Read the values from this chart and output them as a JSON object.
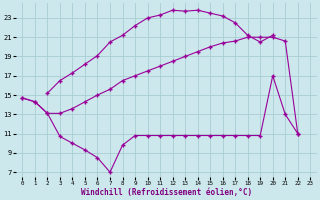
{
  "background_color": "#cce8ec",
  "grid_color": "#a8cdd2",
  "line_color": "#990099",
  "xlabel": "Windchill (Refroidissement éolien,°C)",
  "xlim": [
    -0.5,
    23.5
  ],
  "ylim": [
    6.5,
    24.5
  ],
  "xticks": [
    0,
    1,
    2,
    3,
    4,
    5,
    6,
    7,
    8,
    9,
    10,
    11,
    12,
    13,
    14,
    15,
    16,
    17,
    18,
    19,
    20,
    21,
    22,
    23
  ],
  "yticks": [
    7,
    9,
    11,
    13,
    15,
    17,
    19,
    21,
    23
  ],
  "s_upper_x": [
    2,
    3,
    4,
    5,
    6,
    7,
    8,
    9,
    10,
    11,
    12,
    13,
    14,
    15,
    16,
    17,
    18,
    19,
    20
  ],
  "s_upper_y": [
    15.2,
    16.5,
    17.3,
    18.2,
    19.1,
    20.5,
    21.2,
    22.2,
    23.0,
    23.3,
    23.8,
    23.7,
    23.8,
    23.5,
    23.2,
    22.5,
    21.2,
    20.5,
    21.2
  ],
  "s_mid_x": [
    0,
    1,
    2,
    3,
    4,
    5,
    6,
    7,
    8,
    9,
    10,
    11,
    12,
    13,
    14,
    15,
    16,
    17,
    18,
    19,
    20,
    21,
    22
  ],
  "s_mid_y": [
    14.7,
    14.3,
    13.1,
    13.1,
    13.6,
    14.3,
    15.0,
    15.6,
    16.5,
    17.0,
    17.5,
    18.0,
    18.5,
    19.0,
    19.5,
    20.0,
    20.4,
    20.6,
    21.0,
    21.0,
    21.0,
    20.6,
    11.0
  ],
  "s_low_x": [
    0,
    1,
    2,
    3,
    4,
    5,
    6,
    7,
    8,
    9,
    10,
    11,
    12,
    13,
    14,
    15,
    16,
    17,
    18,
    19,
    20,
    21,
    22
  ],
  "s_low_y": [
    14.7,
    14.3,
    13.1,
    10.7,
    10.0,
    9.3,
    8.5,
    7.0,
    9.8,
    10.8,
    10.8,
    10.8,
    10.8,
    10.8,
    10.8,
    10.8,
    10.8,
    10.8,
    10.8,
    10.8,
    17.0,
    13.0,
    11.0
  ]
}
